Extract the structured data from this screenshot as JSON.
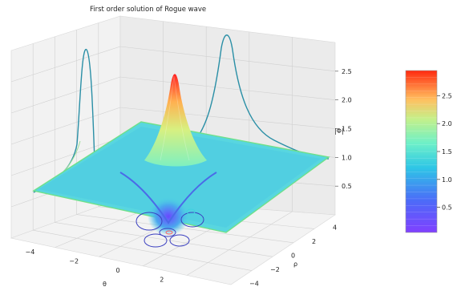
{
  "chart_data": {
    "type": "surface3d",
    "title": "First order solution of Rogue wave",
    "xlabel": "θ",
    "ylabel": "ρ",
    "zlabel": "|Φ|",
    "x_ticks": [
      "−4",
      "−2",
      "0",
      "2"
    ],
    "y_ticks": [
      "−4",
      "−2",
      "0",
      "2",
      "4"
    ],
    "z_ticks": [
      "0.5",
      "1.0",
      "1.5",
      "2.0",
      "2.5"
    ],
    "xlim": [
      -5,
      5
    ],
    "ylim": [
      -5,
      5
    ],
    "zlim": [
      0,
      3
    ],
    "peak_value": 3.0,
    "background_value": 1.0,
    "minimum_value": 0.0,
    "projections": [
      "contour on ρ wall (max ≈ 2.9)",
      "contour on θ wall (max ≈ 2.9)",
      "contour rings on floor"
    ],
    "colormap": "rainbow",
    "colorbar": {
      "ticks": [
        "0.5",
        "1.0",
        "1.5",
        "2.0",
        "2.5"
      ],
      "range": [
        0.05,
        2.95
      ]
    },
    "grid": true
  }
}
